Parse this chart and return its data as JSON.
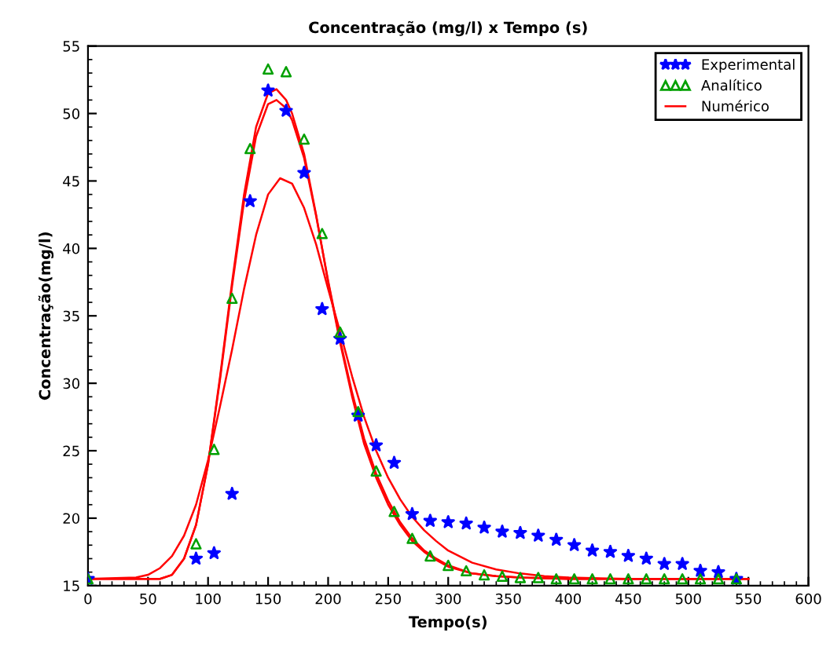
{
  "chart_data": {
    "type": "line",
    "title": "Concentração (mg/l) x Tempo (s)",
    "xlabel": "Tempo(s)",
    "ylabel": "Concentração(mg/l)",
    "xlim": [
      0,
      600
    ],
    "xticks": [
      0,
      50,
      100,
      150,
      200,
      250,
      300,
      350,
      400,
      450,
      500,
      550,
      600
    ],
    "ylim": [
      15,
      55
    ],
    "yticks": [
      15,
      20,
      25,
      30,
      35,
      40,
      45,
      50,
      55
    ],
    "grid": false,
    "legend": "top right",
    "series": [
      {
        "name": "Experimental",
        "type": "scatter",
        "marker": "star",
        "color": "#0000ff",
        "x": [
          0,
          90,
          105,
          120,
          135,
          150,
          165,
          180,
          195,
          210,
          225,
          240,
          255,
          270,
          285,
          300,
          315,
          330,
          345,
          360,
          375,
          390,
          405,
          420,
          435,
          450,
          465,
          480,
          495,
          510,
          525,
          540
        ],
        "values": [
          15.5,
          17.0,
          17.4,
          21.8,
          43.5,
          51.7,
          50.2,
          45.6,
          35.5,
          33.3,
          27.6,
          25.4,
          24.1,
          20.3,
          19.8,
          19.7,
          19.6,
          19.3,
          19.0,
          18.9,
          18.7,
          18.4,
          18.0,
          17.6,
          17.5,
          17.2,
          17.0,
          16.6,
          16.6,
          16.1,
          16.0,
          15.5
        ]
      },
      {
        "name": "Analítico",
        "type": "scatter",
        "marker": "triangle",
        "color": "#00a000",
        "x": [
          0,
          90,
          105,
          120,
          135,
          150,
          165,
          180,
          195,
          210,
          225,
          240,
          255,
          270,
          285,
          300,
          315,
          330,
          345,
          360,
          375,
          390,
          405,
          420,
          435,
          450,
          465,
          480,
          495,
          510,
          525,
          540
        ],
        "values": [
          15.5,
          18.1,
          25.1,
          36.3,
          47.4,
          53.3,
          53.1,
          48.1,
          41.1,
          33.8,
          27.9,
          23.5,
          20.5,
          18.5,
          17.2,
          16.5,
          16.1,
          15.8,
          15.7,
          15.6,
          15.6,
          15.5,
          15.5,
          15.5,
          15.5,
          15.5,
          15.5,
          15.5,
          15.5,
          15.5,
          15.5,
          15.5
        ]
      },
      {
        "name": "Numérico",
        "marker": "none",
        "line_style": "solid",
        "color": "#ff0000",
        "x": [
          0,
          60,
          70,
          80,
          90,
          100,
          110,
          120,
          130,
          140,
          150,
          157,
          165,
          170,
          180,
          190,
          200,
          210,
          220,
          230,
          240,
          250,
          260,
          270,
          280,
          290,
          300,
          320,
          340,
          360,
          400,
          550
        ],
        "values": [
          15.5,
          15.5,
          15.8,
          17.0,
          19.5,
          24.0,
          30.5,
          37.5,
          44.0,
          49.0,
          51.5,
          51.8,
          51.0,
          50.0,
          47.0,
          42.5,
          37.5,
          33.0,
          29.0,
          25.5,
          23.0,
          21.0,
          19.5,
          18.3,
          17.5,
          16.9,
          16.4,
          15.9,
          15.7,
          15.6,
          15.5,
          15.5
        ]
      },
      {
        "marker": "none",
        "line_style": "solid",
        "color": "#ff0000",
        "x": [
          0,
          60,
          70,
          80,
          90,
          100,
          110,
          120,
          130,
          140,
          150,
          157,
          165,
          170,
          180,
          190,
          200,
          210,
          220,
          230,
          240,
          250,
          260,
          270,
          280,
          290,
          300,
          320,
          340,
          360,
          400,
          550
        ],
        "values": [
          15.5,
          15.5,
          15.8,
          17.0,
          19.5,
          24.0,
          30.3,
          37.2,
          43.5,
          48.3,
          50.7,
          51.0,
          50.4,
          49.5,
          46.7,
          42.4,
          37.6,
          33.2,
          29.3,
          25.9,
          23.3,
          21.3,
          19.7,
          18.5,
          17.6,
          17.0,
          16.5,
          15.9,
          15.7,
          15.6,
          15.5,
          15.5
        ]
      },
      {
        "marker": "none",
        "line_style": "solid",
        "color": "#ff0000",
        "x": [
          0,
          40,
          50,
          60,
          70,
          80,
          90,
          100,
          110,
          120,
          130,
          140,
          150,
          160,
          170,
          180,
          190,
          200,
          210,
          220,
          230,
          240,
          250,
          260,
          270,
          280,
          290,
          300,
          320,
          340,
          360,
          380,
          400,
          450,
          550
        ],
        "values": [
          15.5,
          15.6,
          15.8,
          16.3,
          17.2,
          18.7,
          21.0,
          24.3,
          28.3,
          32.5,
          37.0,
          41.0,
          44.0,
          45.2,
          44.8,
          43.0,
          40.3,
          37.0,
          33.8,
          30.5,
          27.5,
          25.0,
          23.0,
          21.4,
          20.1,
          19.1,
          18.3,
          17.6,
          16.7,
          16.2,
          15.9,
          15.7,
          15.6,
          15.5,
          15.5
        ]
      }
    ]
  }
}
